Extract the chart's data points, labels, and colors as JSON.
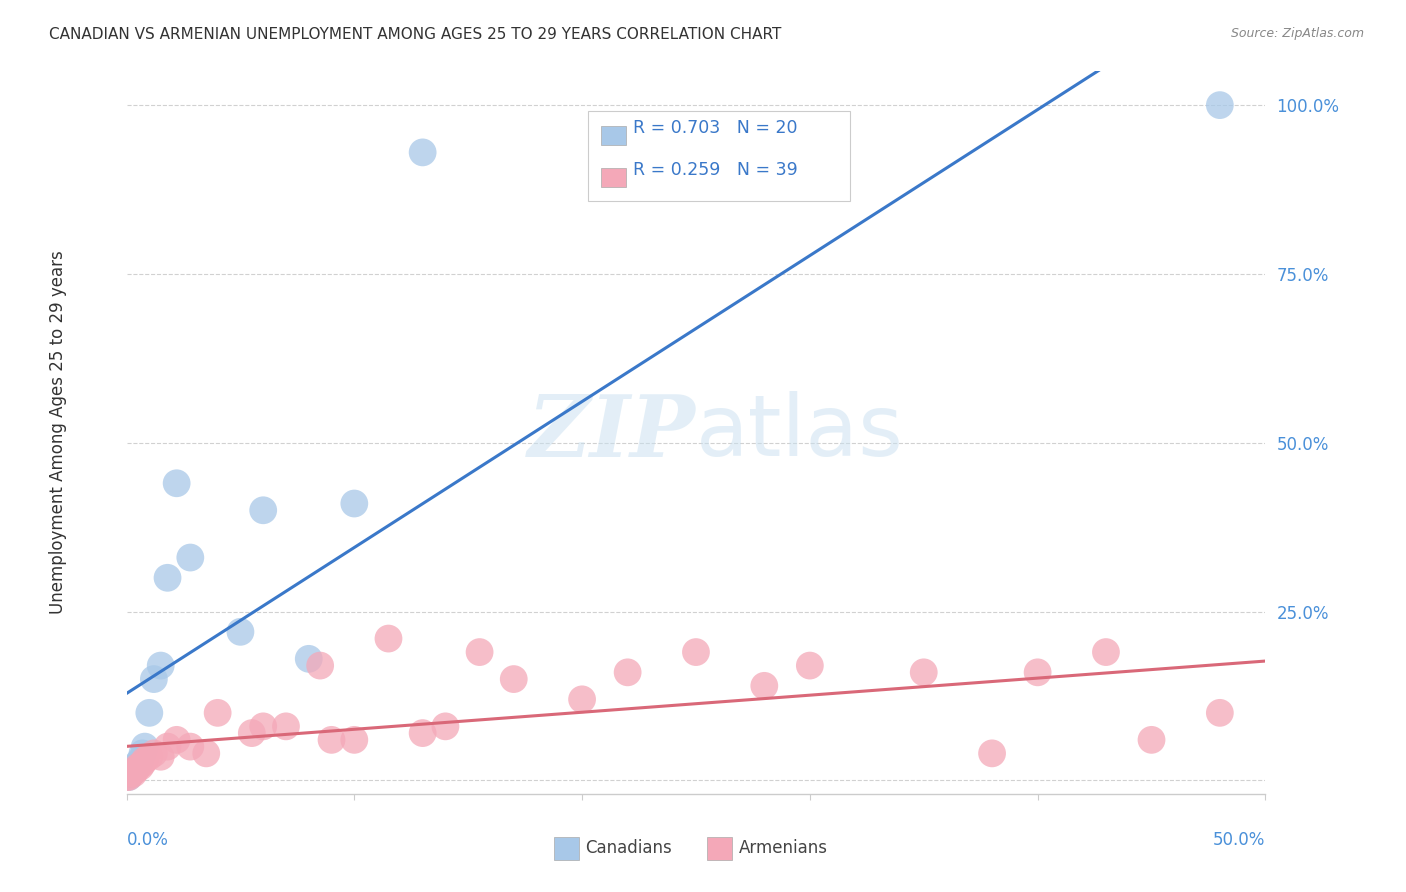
{
  "title": "CANADIAN VS ARMENIAN UNEMPLOYMENT AMONG AGES 25 TO 29 YEARS CORRELATION CHART",
  "source": "Source: ZipAtlas.com",
  "ylabel": "Unemployment Among Ages 25 to 29 years",
  "xlim": [
    0.0,
    0.5
  ],
  "ylim": [
    -0.02,
    1.05
  ],
  "yticks": [
    0.0,
    0.25,
    0.5,
    0.75,
    1.0
  ],
  "ytick_labels": [
    "",
    "25.0%",
    "50.0%",
    "75.0%",
    "100.0%"
  ],
  "watermark_zip": "ZIP",
  "watermark_atlas": "atlas",
  "canadians_R": 0.703,
  "canadians_N": 20,
  "armenians_R": 0.259,
  "armenians_N": 39,
  "canadian_color": "#a8c8e8",
  "armenian_color": "#f4a8b8",
  "canadian_line_color": "#3a78c9",
  "armenian_line_color": "#d96878",
  "canadian_x": [
    0.001,
    0.002,
    0.003,
    0.004,
    0.005,
    0.006,
    0.007,
    0.008,
    0.01,
    0.012,
    0.015,
    0.018,
    0.022,
    0.028,
    0.05,
    0.06,
    0.08,
    0.1,
    0.13,
    0.48
  ],
  "canadian_y": [
    0.005,
    0.01,
    0.015,
    0.02,
    0.025,
    0.03,
    0.04,
    0.05,
    0.1,
    0.15,
    0.17,
    0.3,
    0.44,
    0.33,
    0.22,
    0.4,
    0.18,
    0.41,
    0.93,
    1.0
  ],
  "armenian_x": [
    0.0,
    0.001,
    0.002,
    0.003,
    0.004,
    0.005,
    0.006,
    0.007,
    0.008,
    0.01,
    0.012,
    0.015,
    0.018,
    0.022,
    0.028,
    0.035,
    0.04,
    0.055,
    0.06,
    0.07,
    0.085,
    0.09,
    0.1,
    0.115,
    0.13,
    0.14,
    0.155,
    0.17,
    0.2,
    0.22,
    0.25,
    0.28,
    0.3,
    0.35,
    0.38,
    0.4,
    0.43,
    0.45,
    0.48
  ],
  "armenian_y": [
    0.005,
    0.005,
    0.01,
    0.01,
    0.015,
    0.02,
    0.02,
    0.025,
    0.03,
    0.035,
    0.04,
    0.035,
    0.05,
    0.06,
    0.05,
    0.04,
    0.1,
    0.07,
    0.08,
    0.08,
    0.17,
    0.06,
    0.06,
    0.21,
    0.07,
    0.08,
    0.19,
    0.15,
    0.12,
    0.16,
    0.19,
    0.14,
    0.17,
    0.16,
    0.04,
    0.16,
    0.19,
    0.06,
    0.1
  ],
  "background_color": "#ffffff",
  "title_fontsize": 11,
  "source_fontsize": 9,
  "tick_color": "#4a90d9",
  "grid_color": "#cccccc",
  "spine_color": "#cccccc"
}
